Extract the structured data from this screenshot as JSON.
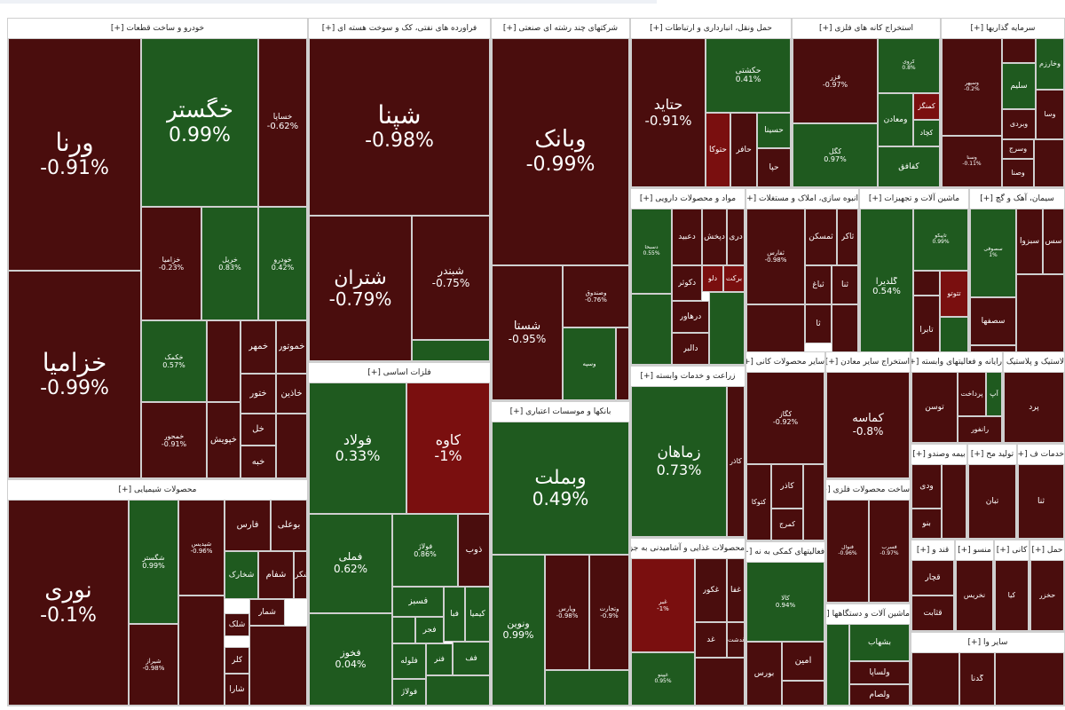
{
  "sectors": [
    {
      "id": "auto",
      "label": "خودرو و ساخت قطعات [+]",
      "tiles": [
        {
          "name": "ورنا",
          "change": "-0.91%",
          "color": "red",
          "size": "xl"
        },
        {
          "name": "خزامیا",
          "change": "-0.99%",
          "color": "red",
          "size": "xl"
        },
        {
          "name": "خگستر",
          "change": "0.99%",
          "color": "green",
          "size": "xl"
        },
        {
          "name": "خساپا",
          "change": "-0.62%",
          "color": "red",
          "size": "s"
        },
        {
          "name": "خزامیا",
          "change": "-0.23%",
          "color": "red",
          "size": "xs"
        },
        {
          "name": "خریل",
          "change": "0.83%",
          "color": "green",
          "size": "xs"
        },
        {
          "name": "خودرو",
          "change": "0.42%",
          "color": "green",
          "size": "xs"
        },
        {
          "name": "خکمک",
          "change": "0.57%",
          "color": "green",
          "size": "xs"
        },
        {
          "name": "خمهر",
          "change": "",
          "color": "red",
          "size": "s"
        },
        {
          "name": "خموتور",
          "change": "",
          "color": "red",
          "size": "s"
        },
        {
          "name": "خاذین",
          "change": "",
          "color": "red",
          "size": "s"
        },
        {
          "name": "ختور",
          "change": "",
          "color": "red",
          "size": "s"
        },
        {
          "name": "خپویش",
          "change": "",
          "color": "red",
          "size": "s"
        },
        {
          "name": "خمحور",
          "change": "-0.91%",
          "color": "red",
          "size": "xs"
        },
        {
          "name": "خل",
          "change": "",
          "color": "red",
          "size": "s"
        },
        {
          "name": "خبه",
          "change": "",
          "color": "red",
          "size": "s"
        }
      ]
    },
    {
      "id": "oil",
      "label": "فراورده های نفتی، کک و سوخت هسته ای [+]",
      "tiles": [
        {
          "name": "شپنا",
          "change": "-0.98%",
          "color": "red",
          "size": "xl"
        },
        {
          "name": "شتران",
          "change": "-0.79%",
          "color": "red",
          "size": "l"
        },
        {
          "name": "شبندر",
          "change": "-0.75%",
          "color": "red",
          "size": "m"
        }
      ]
    },
    {
      "id": "multi",
      "label": "شرکتهای چند رشته ای صنعتی [+]",
      "tiles": [
        {
          "name": "وبانک",
          "change": "-0.99%",
          "color": "red",
          "size": "xl"
        },
        {
          "name": "شستا",
          "change": "-0.95%",
          "color": "red",
          "size": "m"
        },
        {
          "name": "وصندوق",
          "change": "-0.76%",
          "color": "red",
          "size": "xs"
        },
        {
          "name": "وسپه",
          "change": "",
          "color": "green",
          "size": "xs"
        }
      ]
    },
    {
      "id": "transport",
      "label": "حمل ونقل، انبارداری و ارتباطات [+]",
      "tiles": [
        {
          "name": "حتاید",
          "change": "-0.91%",
          "color": "red",
          "size": "l"
        },
        {
          "name": "حکشتی",
          "change": "0.41%",
          "color": "green",
          "size": "s"
        },
        {
          "name": "حسینا",
          "change": "",
          "color": "green",
          "size": "s"
        },
        {
          "name": "حتوکا",
          "change": "",
          "color": "bred",
          "size": "s"
        },
        {
          "name": "حآفر",
          "change": "",
          "color": "red",
          "size": "s"
        },
        {
          "name": "حپا",
          "change": "",
          "color": "red",
          "size": "s"
        }
      ]
    },
    {
      "id": "metalore",
      "label": "استخراج کانه های فلزی [+]",
      "tiles": [
        {
          "name": "فزر",
          "change": "-0.97%",
          "color": "red",
          "size": "s"
        },
        {
          "name": "کگل",
          "change": "0.97%",
          "color": "green",
          "size": "s"
        },
        {
          "name": "کچاد",
          "change": "",
          "color": "green",
          "size": "s"
        },
        {
          "name": "کمنگز",
          "change": "",
          "color": "bred",
          "size": "s"
        },
        {
          "name": "ومعادن",
          "change": "",
          "color": "green",
          "size": "s"
        },
        {
          "name": "کفافق",
          "change": "",
          "color": "green",
          "size": "s"
        },
        {
          "name": "کروی",
          "change": "0.8%",
          "color": "green",
          "size": "xs"
        }
      ]
    },
    {
      "id": "invest",
      "label": "سرمایه گذاریها [+]",
      "tiles": [
        {
          "name": "وخارزم",
          "change": "",
          "color": "green",
          "size": "s"
        },
        {
          "name": "سلیم",
          "change": "",
          "color": "green",
          "size": "s"
        },
        {
          "name": "وسپهر",
          "change": "-0.2%",
          "color": "red",
          "size": "xs"
        },
        {
          "name": "وبردی",
          "change": "",
          "color": "red",
          "size": "s"
        },
        {
          "name": "وسا",
          "change": "",
          "color": "red",
          "size": "s"
        },
        {
          "name": "وصنا",
          "change": "",
          "color": "red",
          "size": "s"
        },
        {
          "name": "وسرج",
          "change": "",
          "color": "red",
          "size": "s"
        },
        {
          "name": "وسنا",
          "change": "-0.11%",
          "color": "red",
          "size": "xs"
        }
      ]
    },
    {
      "id": "pharma",
      "label": "مواد و محصولات دارویی [+]",
      "tiles": [
        {
          "name": "دعبید",
          "change": "",
          "color": "red",
          "size": "s"
        },
        {
          "name": "دپخش",
          "change": "",
          "color": "red",
          "size": "s"
        },
        {
          "name": "دکوثر",
          "change": "",
          "color": "red",
          "size": "s"
        },
        {
          "name": "درهآور",
          "change": "",
          "color": "red",
          "size": "s"
        },
        {
          "name": "دالبر",
          "change": "",
          "color": "red",
          "size": "s"
        },
        {
          "name": "دلو",
          "change": "",
          "color": "bred",
          "size": "s"
        },
        {
          "name": "برکت",
          "change": "",
          "color": "bred",
          "size": "s"
        },
        {
          "name": "دری",
          "change": "",
          "color": "red",
          "size": "s"
        },
        {
          "name": "دسبحا",
          "change": "0.55%",
          "color": "green",
          "size": "xs"
        }
      ]
    },
    {
      "id": "realestate",
      "label": "انبوه سازی، املاک و مستغلات [+]",
      "tiles": [
        {
          "name": "ثفارس",
          "change": "-0.98%",
          "color": "red",
          "size": "xs"
        },
        {
          "name": "ثمسکن",
          "change": "",
          "color": "red",
          "size": "s"
        },
        {
          "name": "ثاکر",
          "change": "",
          "color": "red",
          "size": "s"
        },
        {
          "name": "ثنا",
          "change": "",
          "color": "red",
          "size": "s"
        },
        {
          "name": "ثباغ",
          "change": "",
          "color": "red",
          "size": "s"
        },
        {
          "name": "ثآ",
          "change": "",
          "color": "red",
          "size": "s"
        }
      ]
    },
    {
      "id": "machinery",
      "label": "ماشین آلات و تجهیزات [+]",
      "tiles": [
        {
          "name": "گلدیرا",
          "change": "0.54%",
          "color": "green",
          "size": "s"
        },
        {
          "name": "تاپیکو",
          "change": "0.99%",
          "color": "green",
          "size": "xs"
        },
        {
          "name": "تابرا",
          "change": "",
          "color": "red",
          "size": "s"
        },
        {
          "name": "تتوتو",
          "change": "",
          "color": "bred",
          "size": "s"
        }
      ]
    },
    {
      "id": "cement",
      "label": "سیمان، آهک و گچ [+]",
      "tiles": [
        {
          "name": "سصوفی",
          "change": "1%",
          "color": "green",
          "size": "xs"
        },
        {
          "name": "سبزوا",
          "change": "",
          "color": "red",
          "size": "s"
        },
        {
          "name": "سس",
          "change": "",
          "color": "red",
          "size": "s"
        },
        {
          "name": "سصفها",
          "change": "",
          "color": "red",
          "size": "s"
        }
      ]
    },
    {
      "id": "chemical",
      "label": "محصولات شیمیایی [+]",
      "tiles": [
        {
          "name": "نوری",
          "change": "-0.1%",
          "color": "red",
          "size": "xl"
        },
        {
          "name": "شگستر",
          "change": "0.99%",
          "color": "green",
          "size": "xs"
        },
        {
          "name": "فارس",
          "change": "",
          "color": "red",
          "size": "s"
        },
        {
          "name": "بوعلی",
          "change": "",
          "color": "red",
          "size": "s"
        },
        {
          "name": "شفام",
          "change": "",
          "color": "red",
          "size": "s"
        },
        {
          "name": "شخارک",
          "change": "",
          "color": "green",
          "size": "s"
        },
        {
          "name": "شکر",
          "change": "",
          "color": "red",
          "size": "s"
        },
        {
          "name": "شمار",
          "change": "",
          "color": "red",
          "size": "s"
        },
        {
          "name": "شلک",
          "change": "",
          "color": "red",
          "size": "s"
        },
        {
          "name": "کلر",
          "change": "",
          "color": "red",
          "size": "s"
        },
        {
          "name": "شارا",
          "change": "",
          "color": "red",
          "size": "s"
        },
        {
          "name": "شپدیس",
          "change": "-0.96%",
          "color": "red",
          "size": "xs"
        },
        {
          "name": "شیراز",
          "change": "-0.98%",
          "color": "red",
          "size": "xs"
        }
      ]
    },
    {
      "id": "basemetal",
      "label": "فلزات اساسی [+]",
      "tiles": [
        {
          "name": "فولاد",
          "change": "0.33%",
          "color": "green",
          "size": "l"
        },
        {
          "name": "کاوه",
          "change": "-1%",
          "color": "bred",
          "size": "l"
        },
        {
          "name": "فملی",
          "change": "0.62%",
          "color": "green",
          "size": "m"
        },
        {
          "name": "فخوز",
          "change": "0.04%",
          "color": "green",
          "size": "m"
        },
        {
          "name": "فولاژ",
          "change": "0.86%",
          "color": "green",
          "size": "xs"
        },
        {
          "name": "ذوب",
          "change": "",
          "color": "red",
          "size": "s"
        },
        {
          "name": "فسبز",
          "change": "",
          "color": "green",
          "size": "s"
        },
        {
          "name": "فجر",
          "change": "",
          "color": "green",
          "size": "s"
        },
        {
          "name": "فبا",
          "change": "",
          "color": "green",
          "size": "s"
        },
        {
          "name": "کیمیا",
          "change": "",
          "color": "green",
          "size": "s"
        },
        {
          "name": "فلوله",
          "change": "",
          "color": "green",
          "size": "s"
        },
        {
          "name": "فولاژ",
          "change": "",
          "color": "green",
          "size": "s"
        },
        {
          "name": "فنر",
          "change": "",
          "color": "green",
          "size": "s"
        },
        {
          "name": "فف",
          "change": "",
          "color": "green",
          "size": "s"
        }
      ]
    },
    {
      "id": "banks",
      "label": "بانکها و موسسات اعتباری [+]",
      "tiles": [
        {
          "name": "وبملت",
          "change": "0.49%",
          "color": "green",
          "size": "xl"
        },
        {
          "name": "ونوین",
          "change": "0.99%",
          "color": "green",
          "size": "s"
        },
        {
          "name": "وپارس",
          "change": "-0.98%",
          "color": "red",
          "size": "xs"
        },
        {
          "name": "وتجارت",
          "change": "-0.9%",
          "color": "red",
          "size": "xs"
        }
      ]
    },
    {
      "id": "agri",
      "label": "زراعت و خدمات وابسته [+]",
      "tiles": [
        {
          "name": "زماهان",
          "change": "0.73%",
          "color": "green",
          "size": "l"
        },
        {
          "name": "کاذر",
          "change": "",
          "color": "red",
          "size": "s"
        },
        {
          "name": "کتوکا",
          "change": "",
          "color": "red",
          "size": "s"
        },
        {
          "name": "کمرج",
          "change": "",
          "color": "red",
          "size": "s"
        }
      ]
    },
    {
      "id": "food",
      "label": "محصولات غذایی و آشامیدنی به جز [+]",
      "tiles": [
        {
          "name": "غبر",
          "change": "-1%",
          "color": "bred",
          "size": "xs"
        },
        {
          "name": "غکور",
          "change": "",
          "color": "red",
          "size": "s"
        },
        {
          "name": "غدشت",
          "change": "",
          "color": "red",
          "size": "s"
        },
        {
          "name": "غفا",
          "change": "",
          "color": "red",
          "size": "s"
        },
        {
          "name": "غد",
          "change": "",
          "color": "red",
          "size": "s"
        },
        {
          "name": "غپینو",
          "change": "0.95%",
          "color": "green",
          "size": "xs"
        }
      ]
    },
    {
      "id": "paper",
      "label": "سایر محصولات کانی [+]",
      "tiles": [
        {
          "name": "کگاز",
          "change": "-0.92%",
          "color": "red",
          "size": "xs"
        }
      ]
    },
    {
      "id": "minerals",
      "label": "استخراج سایر معادن [+]",
      "tiles": [
        {
          "name": "کماسه",
          "change": "-0.8%",
          "color": "red",
          "size": "s"
        }
      ]
    },
    {
      "id": "fabmetal",
      "label": "ساخت محصولات فلزی [+]",
      "tiles": [
        {
          "name": "فنوال",
          "change": "-0.96%",
          "color": "red",
          "size": "xs"
        },
        {
          "name": "فسرب",
          "change": "-0.97%",
          "color": "red",
          "size": "xs"
        }
      ]
    },
    {
      "id": "auxfin",
      "label": "فعالیتهای کمکی به نه [+]",
      "tiles": [
        {
          "name": "کالا",
          "change": "0.94%",
          "color": "green",
          "size": "xs"
        },
        {
          "name": "امین",
          "change": "",
          "color": "red",
          "size": "s"
        },
        {
          "name": "بورس",
          "change": "",
          "color": "red",
          "size": "s"
        }
      ]
    },
    {
      "id": "devices",
      "label": "ماشین آلات و دستگاهها [+]",
      "tiles": [
        {
          "name": "بشهاب",
          "change": "",
          "color": "green",
          "size": "s"
        },
        {
          "name": "ولساپا",
          "change": "",
          "color": "red",
          "size": "s"
        },
        {
          "name": "ولصام",
          "change": "",
          "color": "red",
          "size": "s"
        }
      ]
    },
    {
      "id": "computer",
      "label": "رایانه و فعالیتهای وابسته [+]",
      "tiles": [
        {
          "name": "توسن",
          "change": "",
          "color": "red",
          "size": "s"
        },
        {
          "name": "رانفور",
          "change": "",
          "color": "red",
          "size": "s"
        },
        {
          "name": "پرداخت",
          "change": "",
          "color": "red",
          "size": "s"
        },
        {
          "name": "آپ",
          "change": "",
          "color": "green",
          "size": "s"
        }
      ]
    },
    {
      "id": "plastic",
      "label": "لاستیک و پلاستیک [+]",
      "tiles": [
        {
          "name": "پرد",
          "change": "",
          "color": "red",
          "size": "s"
        }
      ]
    },
    {
      "id": "insurance",
      "label": "بیمه وصندو [+]",
      "tiles": [
        {
          "name": "ودی",
          "change": "",
          "color": "red",
          "size": "s"
        },
        {
          "name": "بنو",
          "change": "",
          "color": "red",
          "size": "s"
        }
      ]
    },
    {
      "id": "power",
      "label": "تولید مح [+]",
      "tiles": [
        {
          "name": "تبان",
          "change": "",
          "color": "red",
          "size": "s"
        }
      ]
    },
    {
      "id": "services",
      "label": "خدمات ف [+]",
      "tiles": [
        {
          "name": "ثنا",
          "change": "",
          "color": "red",
          "size": "s"
        }
      ]
    },
    {
      "id": "sugar",
      "label": "قند و [+]",
      "tiles": [
        {
          "name": "قچار",
          "change": "",
          "color": "red",
          "size": "s"
        },
        {
          "name": "قثابت",
          "change": "",
          "color": "red",
          "size": "s"
        }
      ]
    },
    {
      "id": "textile",
      "label": "منسو [+]",
      "tiles": [
        {
          "name": "نخریس",
          "change": "",
          "color": "red",
          "size": "s"
        }
      ]
    },
    {
      "id": "nonmetal",
      "label": "کانی [+]",
      "tiles": [
        {
          "name": "کیا",
          "change": "",
          "color": "red",
          "size": "s"
        }
      ]
    },
    {
      "id": "transport2",
      "label": "حمل [+]",
      "tiles": [
        {
          "name": "حخزر",
          "change": "",
          "color": "red",
          "size": "s"
        }
      ]
    },
    {
      "id": "misc",
      "label": "سایر وا [+]",
      "tiles": [
        {
          "name": "گدنا",
          "change": "",
          "color": "red",
          "size": "s"
        }
      ]
    }
  ]
}
